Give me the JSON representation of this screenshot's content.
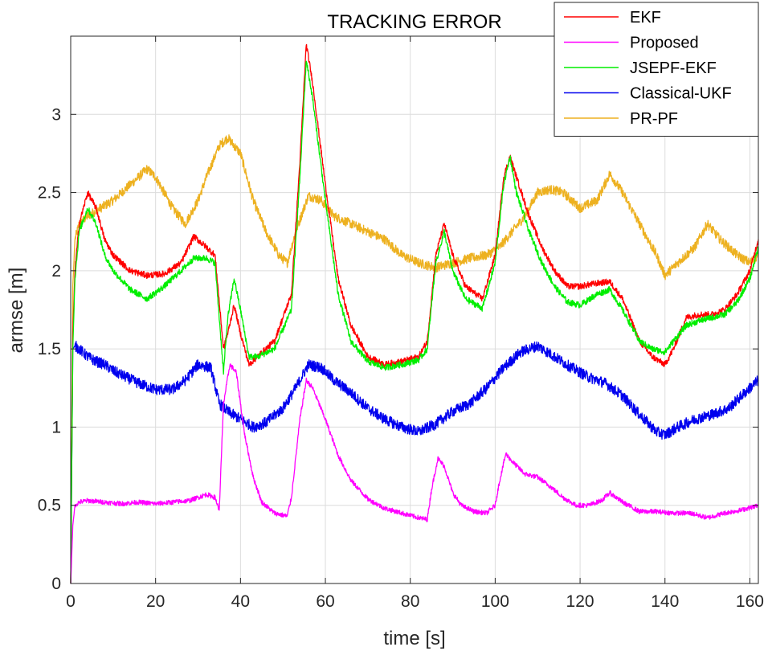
{
  "chart_data": {
    "type": "line",
    "title": "TRACKING ERROR",
    "xlabel": "time [s]",
    "ylabel": "armse [m]",
    "xlim": [
      0,
      162
    ],
    "ylim": [
      0,
      3.5
    ],
    "xticks": [
      "0",
      "20",
      "40",
      "60",
      "80",
      "100",
      "120",
      "140",
      "160"
    ],
    "yticks": [
      "0",
      "0.5",
      "1",
      "1.5",
      "2",
      "2.5",
      "3"
    ],
    "grid": true,
    "legend_position": "top-right",
    "series": [
      {
        "name": "EKF",
        "color": "#ff0000",
        "noise": 0.02,
        "x": [
          0,
          0.5,
          1,
          2,
          4,
          6,
          8,
          10,
          14,
          18,
          22,
          26,
          29,
          32,
          34,
          36,
          37,
          38.5,
          40,
          42,
          44,
          48,
          52,
          54,
          55.5,
          57,
          60,
          63,
          66,
          70,
          74,
          78,
          82,
          84,
          86,
          88,
          90,
          93,
          97,
          100,
          102,
          103.5,
          105,
          108,
          111,
          114,
          117,
          120,
          124,
          127,
          130,
          134,
          137,
          140,
          142,
          145,
          148,
          151,
          154,
          157,
          160,
          162
        ],
        "y": [
          0,
          1.6,
          2.0,
          2.3,
          2.5,
          2.4,
          2.2,
          2.1,
          2.0,
          1.97,
          1.98,
          2.05,
          2.22,
          2.15,
          2.1,
          1.5,
          1.6,
          1.78,
          1.6,
          1.4,
          1.45,
          1.55,
          1.85,
          2.7,
          3.45,
          3.2,
          2.55,
          1.95,
          1.65,
          1.45,
          1.4,
          1.42,
          1.45,
          1.55,
          2.1,
          2.3,
          2.1,
          1.9,
          1.82,
          2.1,
          2.6,
          2.73,
          2.6,
          2.35,
          2.15,
          2.0,
          1.9,
          1.9,
          1.92,
          1.93,
          1.82,
          1.55,
          1.45,
          1.4,
          1.5,
          1.7,
          1.72,
          1.72,
          1.75,
          1.85,
          2.0,
          2.2
        ]
      },
      {
        "name": "Proposed",
        "color": "#ff00ff",
        "noise": 0.015,
        "x": [
          0,
          0.5,
          1,
          2,
          4,
          8,
          12,
          16,
          20,
          24,
          28,
          32,
          34,
          35,
          36,
          37.5,
          39,
          41,
          43,
          45,
          48,
          51,
          52,
          54,
          55.5,
          57,
          60,
          63,
          66,
          70,
          74,
          78,
          82,
          84,
          85,
          86.5,
          88,
          90,
          92,
          95,
          98,
          100,
          101,
          102.5,
          104,
          107,
          110,
          113,
          116,
          119,
          122,
          125,
          127,
          130,
          134,
          138,
          142,
          146,
          150,
          154,
          158,
          162
        ],
        "y": [
          0,
          0.37,
          0.5,
          0.52,
          0.53,
          0.52,
          0.51,
          0.52,
          0.51,
          0.52,
          0.53,
          0.57,
          0.55,
          0.47,
          1.15,
          1.4,
          1.35,
          0.95,
          0.68,
          0.52,
          0.45,
          0.43,
          0.55,
          1.05,
          1.3,
          1.25,
          1.05,
          0.82,
          0.66,
          0.54,
          0.48,
          0.45,
          0.42,
          0.41,
          0.6,
          0.8,
          0.75,
          0.58,
          0.5,
          0.46,
          0.45,
          0.5,
          0.65,
          0.83,
          0.78,
          0.7,
          0.68,
          0.62,
          0.55,
          0.5,
          0.5,
          0.53,
          0.58,
          0.52,
          0.46,
          0.46,
          0.45,
          0.45,
          0.42,
          0.45,
          0.47,
          0.5
        ]
      },
      {
        "name": "JSEPF-EKF",
        "color": "#00ee00",
        "noise": 0.02,
        "x": [
          0,
          0.5,
          1,
          2,
          4,
          6,
          8,
          10,
          14,
          18,
          22,
          26,
          29,
          32,
          34,
          36,
          37,
          38.5,
          40,
          42,
          44,
          48,
          52,
          54,
          55.5,
          57,
          60,
          63,
          66,
          70,
          74,
          78,
          82,
          84,
          86,
          88,
          90,
          93,
          97,
          100,
          102,
          103.5,
          105,
          108,
          111,
          114,
          117,
          120,
          124,
          127,
          130,
          134,
          137,
          140,
          142,
          145,
          148,
          151,
          154,
          157,
          160,
          162
        ],
        "y": [
          0,
          1.5,
          1.95,
          2.25,
          2.4,
          2.3,
          2.1,
          2.0,
          1.88,
          1.82,
          1.9,
          2.0,
          2.08,
          2.08,
          2.05,
          1.35,
          1.7,
          1.95,
          1.75,
          1.45,
          1.45,
          1.5,
          1.75,
          2.6,
          3.35,
          3.1,
          2.45,
          1.85,
          1.55,
          1.42,
          1.38,
          1.4,
          1.43,
          1.5,
          2.05,
          2.25,
          2.0,
          1.82,
          1.76,
          2.05,
          2.55,
          2.73,
          2.5,
          2.25,
          2.05,
          1.9,
          1.8,
          1.78,
          1.85,
          1.88,
          1.75,
          1.55,
          1.5,
          1.48,
          1.55,
          1.65,
          1.68,
          1.7,
          1.72,
          1.8,
          1.95,
          2.15
        ]
      },
      {
        "name": "Classical-UKF",
        "color": "#0000ee",
        "noise": 0.035,
        "x": [
          0,
          0.5,
          1,
          2,
          4,
          6,
          8,
          10,
          13,
          16,
          20,
          24,
          27,
          30,
          33,
          35,
          37,
          40,
          43,
          46,
          50,
          53,
          56,
          59,
          62,
          66,
          70,
          74,
          78,
          82,
          86,
          90,
          94,
          98,
          102,
          106,
          110,
          114,
          118,
          122,
          126,
          130,
          134,
          138,
          140,
          143,
          147,
          151,
          155,
          158,
          162
        ],
        "y": [
          0,
          1.5,
          1.52,
          1.5,
          1.45,
          1.42,
          1.4,
          1.36,
          1.32,
          1.28,
          1.24,
          1.24,
          1.3,
          1.4,
          1.38,
          1.15,
          1.1,
          1.05,
          1.0,
          1.03,
          1.12,
          1.25,
          1.4,
          1.38,
          1.3,
          1.22,
          1.12,
          1.05,
          1.0,
          0.97,
          1.02,
          1.1,
          1.15,
          1.25,
          1.38,
          1.48,
          1.52,
          1.45,
          1.38,
          1.32,
          1.28,
          1.2,
          1.08,
          0.97,
          0.95,
          1.0,
          1.05,
          1.08,
          1.12,
          1.2,
          1.3
        ]
      },
      {
        "name": "PR-PF",
        "color": "#edb120",
        "noise": 0.03,
        "x": [
          0,
          0.5,
          1,
          2,
          4,
          7,
          10,
          14,
          18,
          20,
          22,
          24,
          27,
          30,
          32,
          35,
          37,
          40,
          43,
          46,
          49,
          51,
          53,
          56,
          59,
          62,
          66,
          70,
          74,
          78,
          82,
          86,
          90,
          94,
          98,
          101,
          104,
          107,
          110,
          113,
          116,
          120,
          124,
          127,
          130,
          134,
          138,
          140,
          143,
          147,
          150,
          153,
          157,
          160,
          162
        ],
        "y": [
          0,
          1.9,
          2.2,
          2.3,
          2.35,
          2.4,
          2.45,
          2.55,
          2.65,
          2.6,
          2.5,
          2.4,
          2.3,
          2.45,
          2.6,
          2.8,
          2.85,
          2.75,
          2.45,
          2.25,
          2.1,
          2.05,
          2.25,
          2.48,
          2.45,
          2.35,
          2.3,
          2.25,
          2.2,
          2.1,
          2.05,
          2.02,
          2.05,
          2.08,
          2.1,
          2.15,
          2.25,
          2.35,
          2.5,
          2.52,
          2.5,
          2.4,
          2.45,
          2.62,
          2.5,
          2.3,
          2.1,
          1.97,
          2.05,
          2.15,
          2.3,
          2.2,
          2.1,
          2.05,
          2.1
        ]
      }
    ]
  }
}
